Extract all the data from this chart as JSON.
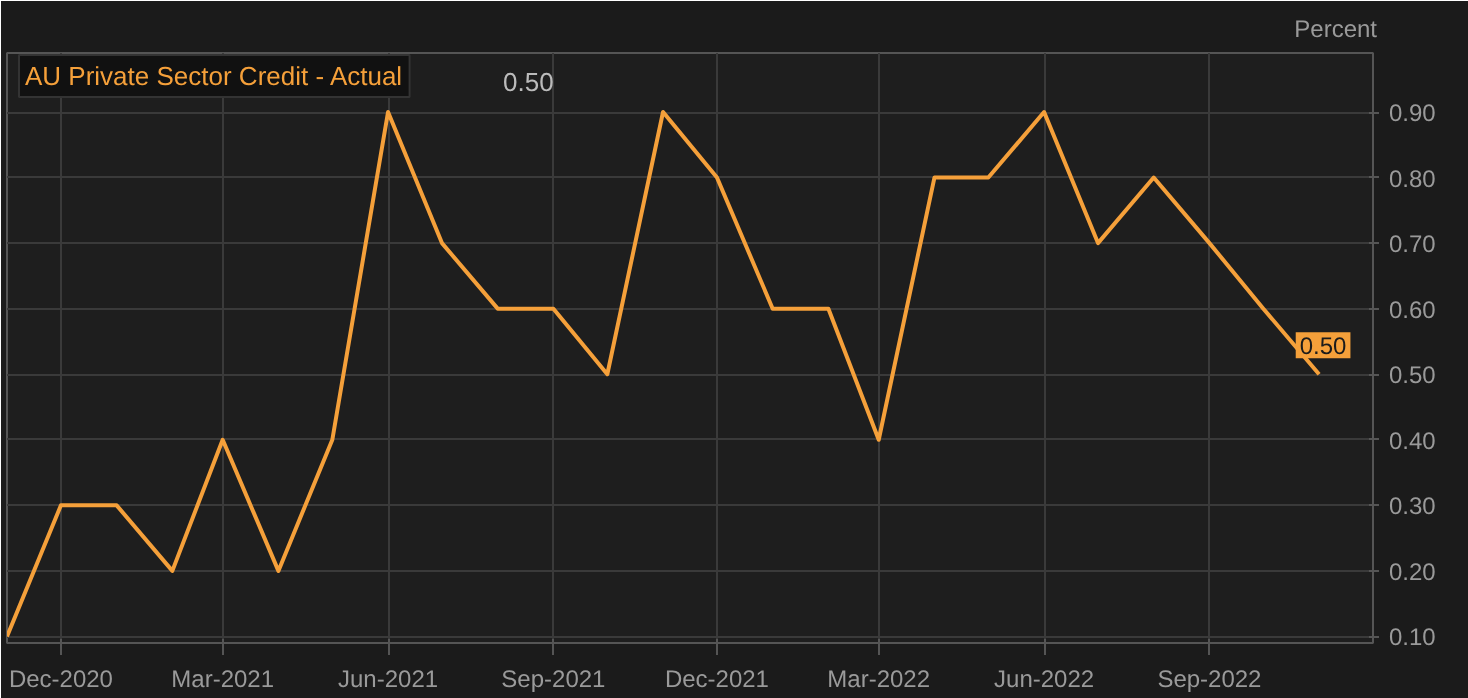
{
  "chart_data": {
    "type": "line",
    "ylabel": "Percent",
    "annotations": [
      "0.50"
    ],
    "x": [
      "2020-11",
      "2020-12",
      "2021-01",
      "2021-02",
      "2021-03",
      "2021-04",
      "2021-05",
      "2021-06",
      "2021-07",
      "2021-08",
      "2021-09",
      "2021-10",
      "2021-11",
      "2021-12",
      "2022-01",
      "2022-02",
      "2022-03",
      "2022-04",
      "2022-05",
      "2022-06",
      "2022-07",
      "2022-08",
      "2022-09",
      "2022-10",
      "2022-11"
    ],
    "series": [
      {
        "name": "AU Private Sector Credit - Actual",
        "color": "#f5a03a",
        "values": [
          0.1,
          0.3,
          0.3,
          0.2,
          0.4,
          0.2,
          0.4,
          0.9,
          0.7,
          0.6,
          0.6,
          0.5,
          0.9,
          0.8,
          0.6,
          0.6,
          0.4,
          0.8,
          0.8,
          0.9,
          0.7,
          0.8,
          0.7,
          0.6,
          0.5
        ],
        "value_labels": [
          null,
          null,
          null,
          null,
          null,
          null,
          null,
          null,
          null,
          null,
          null,
          null,
          null,
          null,
          null,
          null,
          null,
          null,
          null,
          null,
          null,
          null,
          null,
          null,
          "0.50"
        ]
      }
    ],
    "xlim": [
      "2020-11",
      "2022-12"
    ],
    "ylim": [
      0.09,
      0.99
    ],
    "xticks": [
      {
        "value": "2020-12",
        "label": "Dec-2020"
      },
      {
        "value": "2021-03",
        "label": "Mar-2021"
      },
      {
        "value": "2021-06",
        "label": "Jun-2021"
      },
      {
        "value": "2021-09",
        "label": "Sep-2021"
      },
      {
        "value": "2021-12",
        "label": "Dec-2021"
      },
      {
        "value": "2022-03",
        "label": "Mar-2022"
      },
      {
        "value": "2022-06",
        "label": "Jun-2022"
      },
      {
        "value": "2022-09",
        "label": "Sep-2022"
      }
    ],
    "yticks": [
      {
        "value": 0.1,
        "label": "0.10"
      },
      {
        "value": 0.2,
        "label": "0.20"
      },
      {
        "value": 0.3,
        "label": "0.30"
      },
      {
        "value": 0.4,
        "label": "0.40"
      },
      {
        "value": 0.5,
        "label": "0.50"
      },
      {
        "value": 0.6,
        "label": "0.60"
      },
      {
        "value": 0.7,
        "label": "0.70"
      },
      {
        "value": 0.8,
        "label": "0.80"
      },
      {
        "value": 0.9,
        "label": "0.90"
      }
    ],
    "grid": true,
    "legend": "top left"
  }
}
